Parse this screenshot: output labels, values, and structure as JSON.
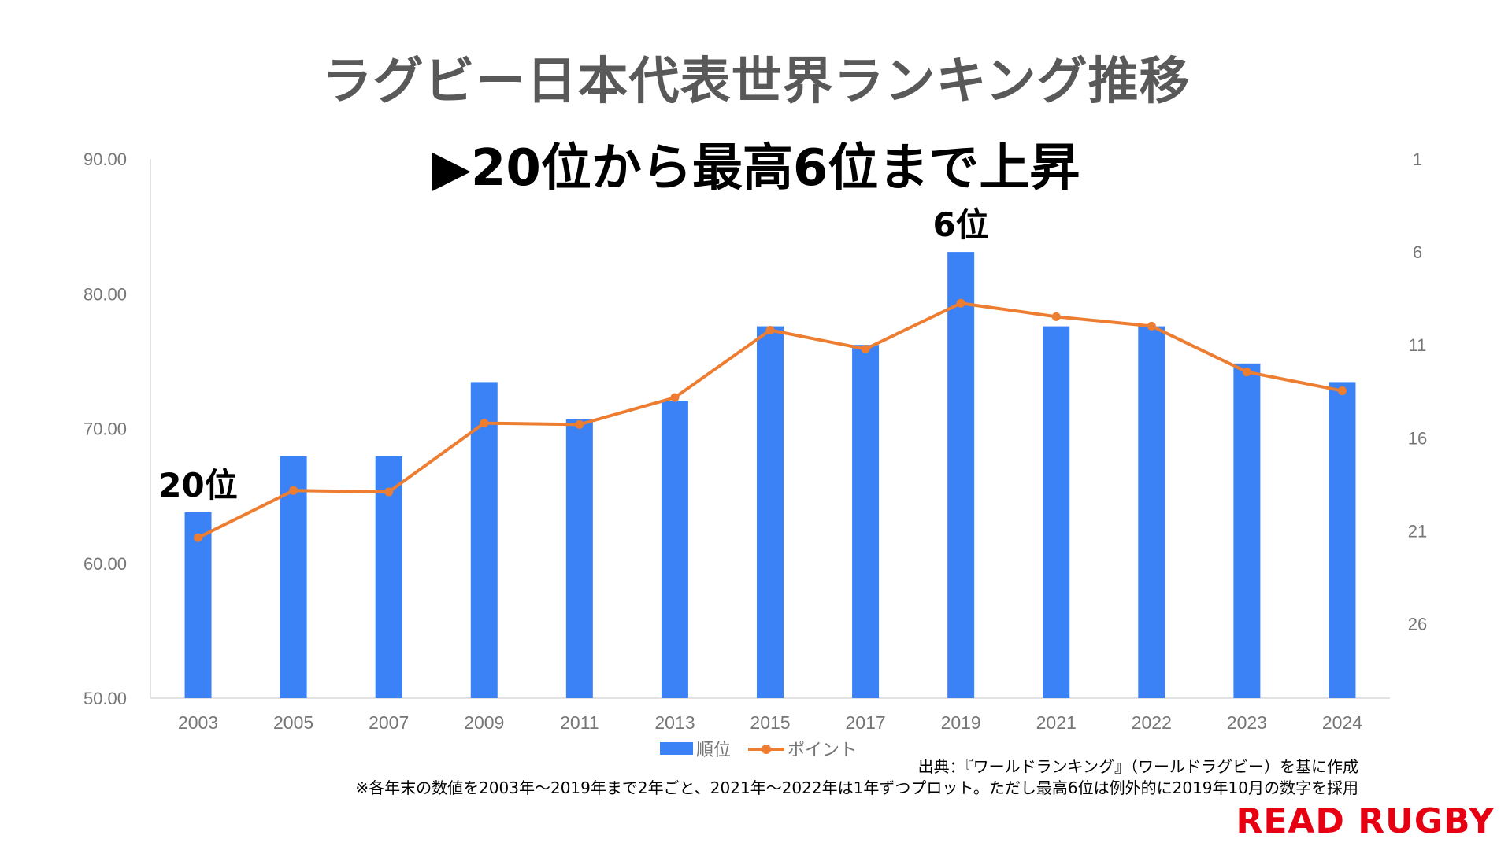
{
  "title": "ラグビー日本代表世界ランキング推移",
  "subtitle": "▶20位から最高6位まで上昇",
  "source": "出典：『ワールドランキング』（ワールドラグビー）を基に作成",
  "note": "※各年末の数値を2003年～2019年まで2年ごと、2021年～2022年は1年ずつプロット。ただし最高6位は例外的に2019年10月の数字を採用",
  "logo": "READ RUGBY",
  "colors": {
    "bar": "#3b82f6",
    "line": "#ed7d31",
    "axis_text": "#767676",
    "gridline": "#d9d9d9",
    "logo": "#e60012"
  },
  "chart_data": {
    "type": "bar",
    "title": "ラグビー日本代表世界ランキング推移",
    "subtitle": "▶20位から最高6位まで上昇",
    "categories": [
      "2003",
      "2005",
      "2007",
      "2009",
      "2011",
      "2013",
      "2015",
      "2017",
      "2019",
      "2021",
      "2022",
      "2023",
      "2024"
    ],
    "series": [
      {
        "name": "順位",
        "type": "bar",
        "axis": "right",
        "values": [
          20,
          17,
          17,
          13,
          15,
          14,
          10,
          11,
          6,
          10,
          10,
          12,
          13
        ]
      },
      {
        "name": "ポイント",
        "type": "line",
        "axis": "left",
        "values": [
          61.9,
          65.4,
          65.3,
          70.4,
          70.3,
          72.3,
          77.3,
          75.9,
          79.3,
          78.3,
          77.6,
          74.2,
          72.8
        ]
      }
    ],
    "y_left": {
      "lim": [
        50,
        90
      ],
      "ticks": [
        "50.00",
        "60.00",
        "70.00",
        "80.00",
        "90.00"
      ]
    },
    "y_right": {
      "lim": [
        1,
        30
      ],
      "reversed": true,
      "ticks": [
        "1",
        "6",
        "11",
        "16",
        "21",
        "26"
      ]
    },
    "annotations": [
      {
        "text": "20位",
        "category": "2003"
      },
      {
        "text": "6位",
        "category": "2019"
      }
    ],
    "legend": [
      "順位",
      "ポイント"
    ],
    "legend_position": "bottom",
    "grid": false
  }
}
